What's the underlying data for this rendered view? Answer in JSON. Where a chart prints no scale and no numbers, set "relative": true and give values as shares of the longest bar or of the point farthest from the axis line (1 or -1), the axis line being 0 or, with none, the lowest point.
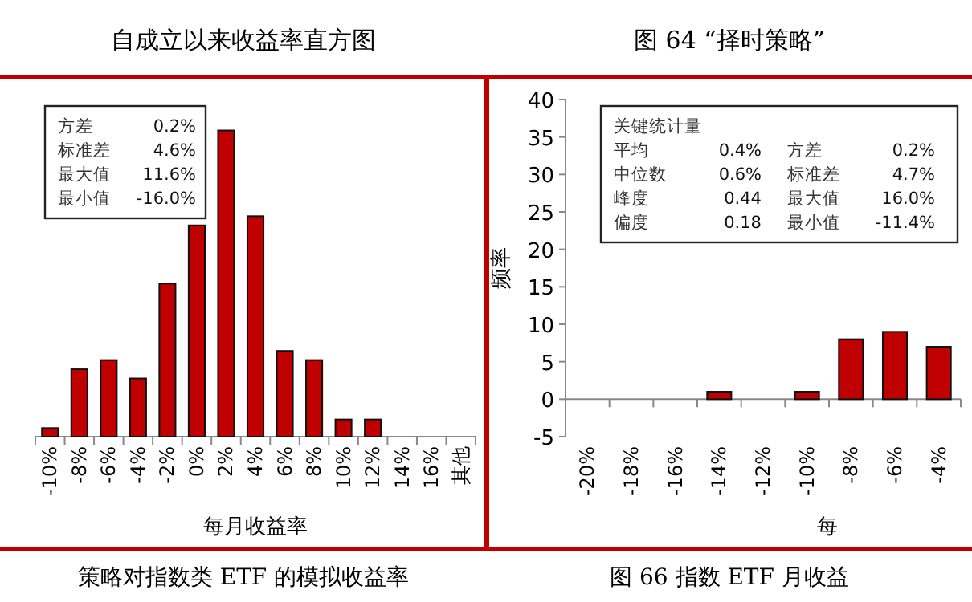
{
  "chart_data": [
    {
      "type": "bar",
      "title": "自成立以来收益率直方图",
      "xlabel": "每月收益率",
      "relative": true,
      "color": "#c00000",
      "categories": [
        "-10%",
        "-8%",
        "-6%",
        "-4%",
        "-2%",
        "0%",
        "2%",
        "4%",
        "6%",
        "8%",
        "10%",
        "12%",
        "14%",
        "16%",
        "其他"
      ],
      "values": [
        0.028,
        0.22,
        0.25,
        0.19,
        0.5,
        0.69,
        1,
        0.72,
        0.28,
        0.25,
        0.056,
        0.056,
        0,
        0,
        0
      ],
      "annotations": [
        "方差 0.2%",
        "标准差 4.6%",
        "最大值 11.6%",
        "最小值 -16.0%",
        "策略对指数类 ETF 的模拟收益率"
      ]
    },
    {
      "type": "bar",
      "title": "图 64 “择时策略”",
      "ylabel": "频率",
      "xlabel": "每",
      "color": "#c00000",
      "categories": [
        "-20%",
        "-18%",
        "-16%",
        "-14%",
        "-12%",
        "-10%",
        "-8%",
        "-6%",
        "-4%"
      ],
      "values": [
        0,
        0,
        0,
        1,
        0,
        1,
        8,
        9,
        7
      ],
      "ylim": [
        -5,
        40
      ],
      "yticks": [
        -5,
        0,
        5,
        10,
        15,
        20,
        25,
        30,
        35,
        40
      ],
      "annotations": [
        "关键统计量",
        "平均 0.4%",
        "方差 0.2%",
        "中位数 0.6%",
        "标准差 4.7%",
        "峰度 0.44",
        "最大值 16.0%",
        "偏度 0.18",
        "最小值 -11.4%",
        "图 66 指数 ETF 月收益"
      ]
    }
  ]
}
